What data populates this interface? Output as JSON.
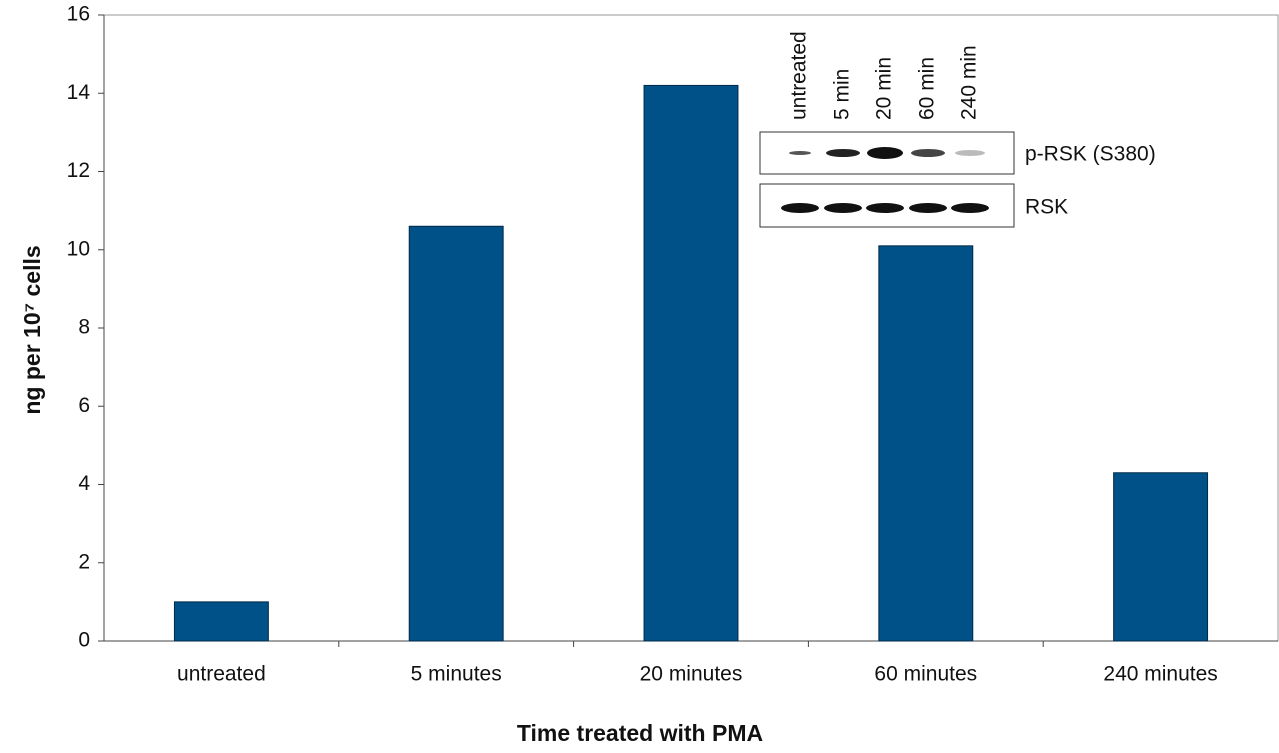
{
  "chart_data": {
    "type": "bar",
    "x_label": "Time treated with PMA",
    "y_label": "ng per 10⁷ cells",
    "categories": [
      "untreated",
      "5 minutes",
      "20 minutes",
      "60 minutes",
      "240 minutes"
    ],
    "values": [
      1.0,
      10.6,
      14.2,
      10.1,
      4.3
    ],
    "color": "#005187",
    "ylim": [
      0,
      16
    ],
    "yticks": [
      0,
      2,
      4,
      6,
      8,
      10,
      12,
      14,
      16
    ],
    "grid": false,
    "inset": {
      "lanes": [
        "untreated",
        "5 min",
        "20 min",
        "60 min",
        "240 min"
      ],
      "rows": [
        "p-RSK (S380)",
        "RSK"
      ]
    }
  }
}
